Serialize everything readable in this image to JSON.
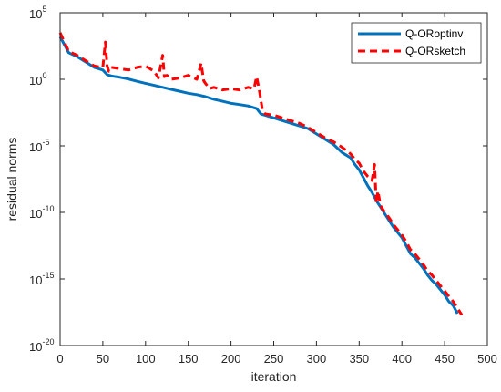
{
  "chart_data": {
    "type": "line",
    "title": "",
    "xlabel": "iteration",
    "ylabel": "residual norms",
    "xlim": [
      0,
      500
    ],
    "ylim": [
      1e-20,
      100000.0
    ],
    "yscale": "log",
    "grid": false,
    "legend_position": "top-right",
    "x_ticks": [
      "0",
      "50",
      "100",
      "150",
      "200",
      "250",
      "300",
      "350",
      "400",
      "450",
      "500"
    ],
    "y_ticks": [
      {
        "base": "10",
        "exp": "5"
      },
      {
        "base": "10",
        "exp": "0"
      },
      {
        "base": "10",
        "exp": "-5"
      },
      {
        "base": "10",
        "exp": "-10"
      },
      {
        "base": "10",
        "exp": "-15"
      },
      {
        "base": "10",
        "exp": "-20"
      }
    ],
    "series": [
      {
        "name": "Q-ORoptinv",
        "color": "#0072BD",
        "line_style": "solid",
        "x": [
          0,
          5,
          10,
          20,
          30,
          40,
          50,
          55,
          60,
          70,
          80,
          90,
          100,
          110,
          120,
          130,
          140,
          150,
          160,
          170,
          180,
          190,
          200,
          210,
          220,
          230,
          235,
          240,
          250,
          260,
          270,
          280,
          290,
          300,
          310,
          320,
          330,
          340,
          345,
          350,
          355,
          360,
          365,
          370,
          375,
          380,
          385,
          390,
          395,
          400,
          405,
          410,
          415,
          420,
          425,
          430,
          435,
          440,
          445,
          450,
          455,
          460,
          465
        ],
        "y": [
          3.2,
          2.6,
          2.0,
          1.7,
          1.3,
          0.9,
          0.7,
          0.35,
          0.25,
          0.15,
          0.02,
          -0.15,
          -0.3,
          -0.45,
          -0.6,
          -0.75,
          -0.9,
          -1.05,
          -1.15,
          -1.3,
          -1.5,
          -1.65,
          -1.8,
          -1.9,
          -2.0,
          -2.2,
          -2.6,
          -2.7,
          -2.9,
          -3.1,
          -3.3,
          -3.5,
          -3.7,
          -4.1,
          -4.5,
          -4.9,
          -5.5,
          -5.9,
          -6.4,
          -6.8,
          -7.4,
          -8.0,
          -8.5,
          -9.1,
          -9.6,
          -10.1,
          -10.6,
          -11.1,
          -11.5,
          -11.9,
          -12.5,
          -13.1,
          -13.4,
          -13.8,
          -14.2,
          -14.7,
          -15.1,
          -15.4,
          -15.8,
          -16.2,
          -16.7,
          -17.0,
          -17.6
        ]
      },
      {
        "name": "Q-ORsketch",
        "color": "#FF0000",
        "line_style": "dashed",
        "x": [
          0,
          5,
          10,
          20,
          30,
          40,
          50,
          53,
          55,
          57,
          60,
          70,
          80,
          90,
          100,
          110,
          115,
          120,
          122,
          125,
          130,
          140,
          150,
          160,
          165,
          168,
          170,
          175,
          180,
          190,
          200,
          210,
          220,
          227,
          230,
          233,
          237,
          240,
          250,
          260,
          270,
          280,
          290,
          300,
          310,
          320,
          330,
          340,
          345,
          350,
          355,
          360,
          365,
          368,
          370,
          372,
          375,
          380,
          385,
          390,
          395,
          400,
          405,
          410,
          415,
          420,
          425,
          430,
          435,
          440,
          445,
          450,
          455,
          460,
          465,
          470
        ],
        "y": [
          3.5,
          2.8,
          2.1,
          1.8,
          1.4,
          1.0,
          0.9,
          2.8,
          1.0,
          0.6,
          0.9,
          0.8,
          0.7,
          0.9,
          1.0,
          0.6,
          0.1,
          1.8,
          0.2,
          0.3,
          0.0,
          0.1,
          0.3,
          0.0,
          1.2,
          -0.1,
          -0.3,
          -0.7,
          -0.6,
          -0.8,
          -0.7,
          -0.8,
          -0.6,
          -0.7,
          0.2,
          -0.8,
          -2.4,
          -2.6,
          -2.7,
          -2.9,
          -3.1,
          -3.3,
          -3.6,
          -4.0,
          -4.4,
          -4.7,
          -5.1,
          -5.6,
          -6.0,
          -6.3,
          -6.9,
          -7.3,
          -7.6,
          -6.4,
          -9.3,
          -8.4,
          -9.5,
          -10.0,
          -10.4,
          -10.9,
          -11.3,
          -11.7,
          -12.2,
          -12.8,
          -13.1,
          -13.5,
          -13.9,
          -14.4,
          -14.7,
          -15.1,
          -15.5,
          -15.9,
          -16.3,
          -16.7,
          -17.2,
          -17.7
        ]
      }
    ]
  }
}
